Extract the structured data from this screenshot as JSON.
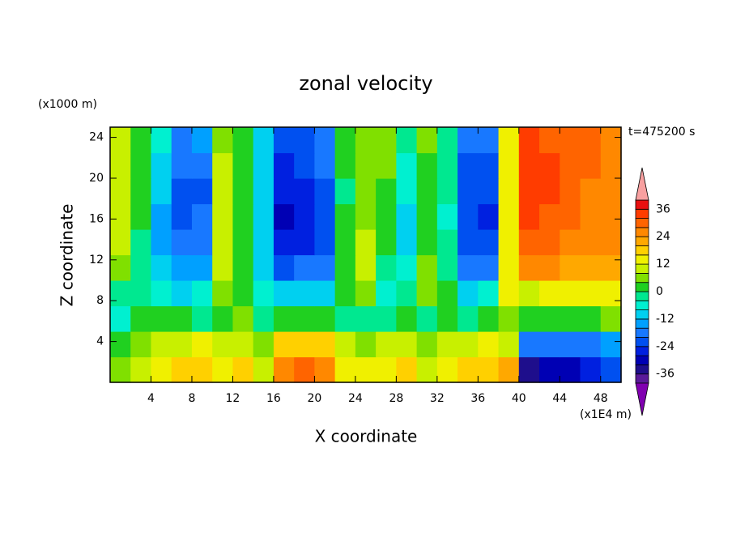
{
  "chart_data": {
    "type": "contour",
    "title": "zonal velocity",
    "xlabel": "X coordinate",
    "ylabel": "Z coordinate",
    "x_unit": "(x1E4 m)",
    "y_unit": "(x1000 m)",
    "annotation": "t=475200 s",
    "x": [
      1,
      3,
      5,
      7,
      9,
      11,
      13,
      15,
      17,
      19,
      21,
      23,
      25,
      27,
      29,
      31,
      33,
      35,
      37,
      39,
      41,
      43,
      45,
      47,
      49
    ],
    "y": [
      1.25,
      3.75,
      6.25,
      8.75,
      11.25,
      13.75,
      16.25,
      18.75,
      21.25,
      23.75
    ],
    "z": [
      [
        6,
        10,
        14,
        16,
        18,
        14,
        16,
        10,
        24,
        28,
        26,
        14,
        12,
        14,
        16,
        8,
        14,
        16,
        18,
        20,
        -34,
        -30,
        -32,
        -28,
        -24
      ],
      [
        2,
        6,
        10,
        10,
        12,
        8,
        10,
        6,
        16,
        18,
        16,
        8,
        6,
        8,
        10,
        4,
        8,
        10,
        12,
        10,
        -20,
        -18,
        -20,
        -18,
        -14
      ],
      [
        -6,
        0,
        2,
        0,
        -2,
        2,
        4,
        -2,
        0,
        2,
        0,
        -2,
        -2,
        -4,
        2,
        -2,
        0,
        -2,
        0,
        6,
        0,
        2,
        2,
        2,
        4
      ],
      [
        -2,
        -4,
        -8,
        -10,
        -6,
        4,
        2,
        -8,
        -10,
        -10,
        -12,
        2,
        6,
        -6,
        -4,
        6,
        0,
        -10,
        -8,
        12,
        10,
        12,
        14,
        12,
        12
      ],
      [
        6,
        -2,
        -12,
        -16,
        -14,
        8,
        0,
        -10,
        -22,
        -20,
        -18,
        2,
        8,
        -2,
        -8,
        4,
        -2,
        -18,
        -20,
        14,
        24,
        24,
        22,
        22,
        20
      ],
      [
        8,
        -2,
        -14,
        -20,
        -18,
        10,
        0,
        -12,
        -26,
        -26,
        -22,
        0,
        8,
        0,
        -10,
        2,
        -4,
        -22,
        -22,
        12,
        28,
        28,
        26,
        24,
        24
      ],
      [
        8,
        0,
        -14,
        -22,
        -20,
        10,
        2,
        -12,
        -30,
        -28,
        -22,
        0,
        6,
        2,
        -10,
        0,
        -6,
        -24,
        -26,
        12,
        32,
        30,
        28,
        26,
        26
      ],
      [
        10,
        2,
        -12,
        -22,
        -22,
        8,
        2,
        -12,
        -28,
        -26,
        -22,
        -2,
        4,
        2,
        -8,
        0,
        -4,
        -24,
        -24,
        12,
        34,
        32,
        28,
        26,
        26
      ],
      [
        8,
        2,
        -10,
        -20,
        -18,
        8,
        2,
        -12,
        -26,
        -24,
        -20,
        0,
        4,
        4,
        -6,
        2,
        -2,
        -22,
        -22,
        14,
        34,
        32,
        28,
        28,
        26
      ],
      [
        8,
        2,
        -8,
        -18,
        -16,
        6,
        0,
        -10,
        -24,
        -22,
        -20,
        2,
        6,
        4,
        -4,
        4,
        -2,
        -18,
        -20,
        14,
        34,
        30,
        28,
        28,
        26
      ]
    ],
    "xlim": [
      0,
      50
    ],
    "ylim": [
      0,
      25
    ],
    "xticks": [
      4,
      8,
      12,
      16,
      20,
      24,
      28,
      32,
      36,
      40,
      44,
      48
    ],
    "yticks": [
      4,
      8,
      12,
      16,
      20,
      24
    ],
    "levels": [
      -40,
      -36,
      -32,
      -28,
      -24,
      -20,
      -16,
      -12,
      -8,
      -4,
      0,
      4,
      8,
      12,
      16,
      20,
      24,
      28,
      32,
      36,
      40
    ],
    "colorbar_ticks": [
      -36,
      -24,
      -12,
      0,
      12,
      24,
      36
    ],
    "colors": [
      "#8000b0",
      "#5a1a9a",
      "#1e0e8c",
      "#0000b4",
      "#0020e0",
      "#0050f0",
      "#1878ff",
      "#00a0ff",
      "#00d0f0",
      "#00f0d0",
      "#00e890",
      "#20d020",
      "#80e000",
      "#c8f000",
      "#f0f000",
      "#ffd000",
      "#ffa800",
      "#ff8800",
      "#ff6400",
      "#ff3c00",
      "#e81010",
      "#f8a0a0"
    ]
  }
}
